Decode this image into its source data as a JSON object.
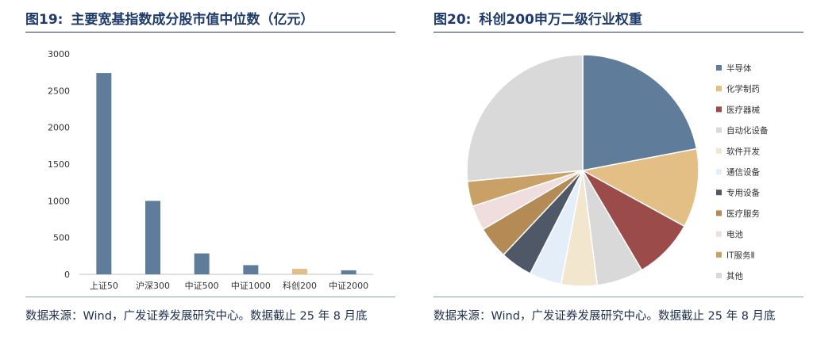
{
  "left_panel": {
    "title_num": "图19:",
    "title_text": "主要宽基指数成分股市值中位数（亿元）",
    "source": "数据来源：Wind，广发证券发展研究中心。数据截止 25 年 8 月底"
  },
  "right_panel": {
    "title_num": "图20:",
    "title_text": "科创200申万二级行业权重",
    "source": "数据来源：Wind，广发证券发展研究中心。数据截止 25 年 8 月底"
  },
  "chart_data": [
    {
      "type": "bar",
      "categories": [
        "上证50",
        "沪深300",
        "中证500",
        "中证1000",
        "科创200",
        "中证2000"
      ],
      "values": [
        2740,
        1000,
        285,
        125,
        75,
        55
      ],
      "colors": [
        "#5f7d9b",
        "#5f7d9b",
        "#5f7d9b",
        "#5f7d9b",
        "#e3bf86",
        "#5f7d9b"
      ],
      "yticks": [
        "0",
        "500",
        "1000",
        "1500",
        "2000",
        "2500",
        "3000"
      ],
      "ylim": [
        0,
        3000
      ],
      "grid": false,
      "legend": "none"
    },
    {
      "type": "pie",
      "labels": [
        "半导体",
        "化学制药",
        "医疗器械",
        "自动化设备",
        "软件开发",
        "通信设备",
        "专用设备",
        "医疗服务",
        "电池",
        "IT服务Ⅱ",
        "其他"
      ],
      "values": [
        22,
        11,
        8.5,
        6.5,
        5,
        4.5,
        4.5,
        4.5,
        3.5,
        3.5,
        26.5
      ],
      "colors": [
        "#5f7d9b",
        "#e3bf86",
        "#9c4b4b",
        "#d9d9d9",
        "#f3e6cf",
        "#e4eef8",
        "#4e5866",
        "#b48a55",
        "#f0dede",
        "#c9a066",
        "#d9d9d9"
      ],
      "legend": "right"
    }
  ]
}
